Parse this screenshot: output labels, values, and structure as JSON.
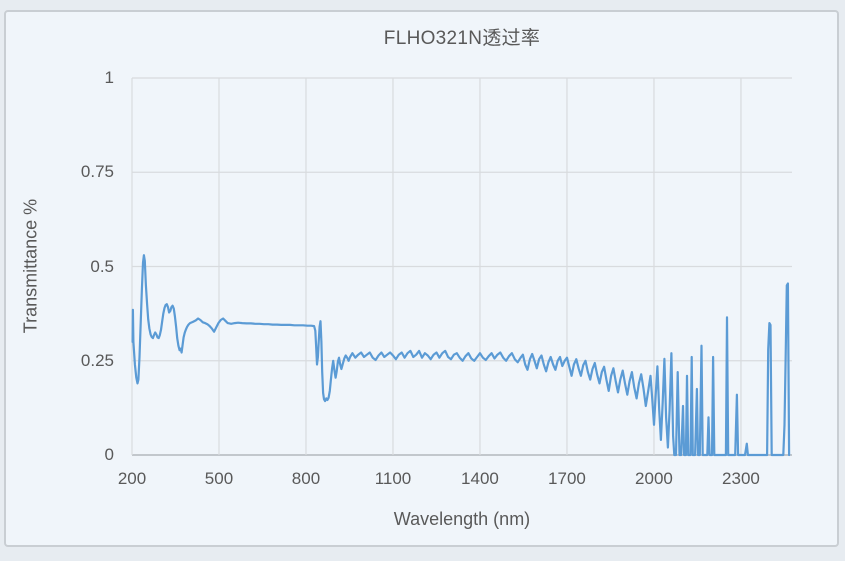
{
  "page": {
    "background": "#e7ecf1"
  },
  "card": {
    "background": "#f0f5fa",
    "border_color": "#c9ced3"
  },
  "chart_data": {
    "type": "line",
    "title": "FLHO321N透过率",
    "xlabel": "Wavelength (nm)",
    "ylabel": "Transmittance %",
    "xlim": [
      200,
      2476
    ],
    "ylim": [
      0,
      1
    ],
    "x_tick_values": [
      200,
      500,
      800,
      1100,
      1400,
      1700,
      2000,
      2300
    ],
    "x_tick_labels": [
      "200",
      "500",
      "800",
      "1100",
      "1400",
      "1700",
      "2000",
      "2300"
    ],
    "y_tick_values": [
      0,
      0.25,
      0.5,
      0.75,
      1
    ],
    "y_tick_labels": [
      "0",
      "0.25",
      "0.5",
      "0.75",
      "1"
    ],
    "grid": true,
    "legend": "none",
    "line_color": "#5b9bd5",
    "grid_color": "#d8dbde",
    "axis_color": "#b3b8bd",
    "text_color": "#595959",
    "series": [
      {
        "name": "FLHO321N",
        "points": [
          [
            202,
            0.3
          ],
          [
            203,
            0.385
          ],
          [
            205,
            0.3
          ],
          [
            210,
            0.24
          ],
          [
            215,
            0.205
          ],
          [
            219,
            0.19
          ],
          [
            222,
            0.2
          ],
          [
            226,
            0.26
          ],
          [
            230,
            0.35
          ],
          [
            234,
            0.44
          ],
          [
            238,
            0.51
          ],
          [
            241,
            0.53
          ],
          [
            244,
            0.515
          ],
          [
            248,
            0.45
          ],
          [
            252,
            0.4
          ],
          [
            256,
            0.36
          ],
          [
            260,
            0.335
          ],
          [
            264,
            0.32
          ],
          [
            268,
            0.313
          ],
          [
            272,
            0.31
          ],
          [
            276,
            0.318
          ],
          [
            280,
            0.325
          ],
          [
            284,
            0.32
          ],
          [
            288,
            0.312
          ],
          [
            292,
            0.31
          ],
          [
            296,
            0.318
          ],
          [
            300,
            0.332
          ],
          [
            304,
            0.355
          ],
          [
            308,
            0.375
          ],
          [
            312,
            0.39
          ],
          [
            316,
            0.398
          ],
          [
            320,
            0.4
          ],
          [
            324,
            0.392
          ],
          [
            328,
            0.378
          ],
          [
            332,
            0.382
          ],
          [
            336,
            0.392
          ],
          [
            340,
            0.396
          ],
          [
            344,
            0.388
          ],
          [
            348,
            0.368
          ],
          [
            352,
            0.34
          ],
          [
            356,
            0.31
          ],
          [
            360,
            0.29
          ],
          [
            364,
            0.278
          ],
          [
            368,
            0.282
          ],
          [
            371,
            0.272
          ],
          [
            374,
            0.29
          ],
          [
            378,
            0.312
          ],
          [
            382,
            0.325
          ],
          [
            386,
            0.333
          ],
          [
            390,
            0.34
          ],
          [
            395,
            0.346
          ],
          [
            400,
            0.35
          ],
          [
            410,
            0.353
          ],
          [
            420,
            0.357
          ],
          [
            428,
            0.362
          ],
          [
            436,
            0.358
          ],
          [
            444,
            0.352
          ],
          [
            452,
            0.35
          ],
          [
            460,
            0.347
          ],
          [
            468,
            0.342
          ],
          [
            476,
            0.335
          ],
          [
            483,
            0.327
          ],
          [
            490,
            0.338
          ],
          [
            498,
            0.35
          ],
          [
            506,
            0.358
          ],
          [
            514,
            0.362
          ],
          [
            522,
            0.356
          ],
          [
            530,
            0.35
          ],
          [
            542,
            0.348
          ],
          [
            554,
            0.35
          ],
          [
            566,
            0.351
          ],
          [
            580,
            0.35
          ],
          [
            595,
            0.349
          ],
          [
            610,
            0.349
          ],
          [
            625,
            0.348
          ],
          [
            640,
            0.348
          ],
          [
            655,
            0.347
          ],
          [
            670,
            0.347
          ],
          [
            685,
            0.346
          ],
          [
            700,
            0.346
          ],
          [
            715,
            0.345
          ],
          [
            730,
            0.345
          ],
          [
            745,
            0.345
          ],
          [
            760,
            0.344
          ],
          [
            775,
            0.344
          ],
          [
            790,
            0.344
          ],
          [
            805,
            0.343
          ],
          [
            818,
            0.343
          ],
          [
            828,
            0.342
          ],
          [
            832,
            0.33
          ],
          [
            835,
            0.29
          ],
          [
            838,
            0.24
          ],
          [
            841,
            0.26
          ],
          [
            844,
            0.3
          ],
          [
            847,
            0.34
          ],
          [
            850,
            0.355
          ],
          [
            853,
            0.3
          ],
          [
            856,
            0.22
          ],
          [
            859,
            0.165
          ],
          [
            862,
            0.148
          ],
          [
            866,
            0.143
          ],
          [
            870,
            0.15
          ],
          [
            874,
            0.146
          ],
          [
            878,
            0.152
          ],
          [
            882,
            0.17
          ],
          [
            886,
            0.2
          ],
          [
            890,
            0.23
          ],
          [
            894,
            0.25
          ],
          [
            898,
            0.225
          ],
          [
            902,
            0.205
          ],
          [
            906,
            0.222
          ],
          [
            910,
            0.248
          ],
          [
            914,
            0.258
          ],
          [
            918,
            0.24
          ],
          [
            922,
            0.228
          ],
          [
            927,
            0.242
          ],
          [
            932,
            0.256
          ],
          [
            937,
            0.264
          ],
          [
            942,
            0.258
          ],
          [
            947,
            0.25
          ],
          [
            952,
            0.26
          ],
          [
            960,
            0.27
          ],
          [
            970,
            0.258
          ],
          [
            980,
            0.266
          ],
          [
            990,
            0.272
          ],
          [
            1000,
            0.26
          ],
          [
            1010,
            0.266
          ],
          [
            1020,
            0.272
          ],
          [
            1030,
            0.258
          ],
          [
            1040,
            0.252
          ],
          [
            1050,
            0.264
          ],
          [
            1060,
            0.272
          ],
          [
            1070,
            0.26
          ],
          [
            1080,
            0.266
          ],
          [
            1090,
            0.272
          ],
          [
            1100,
            0.264
          ],
          [
            1110,
            0.254
          ],
          [
            1120,
            0.266
          ],
          [
            1130,
            0.272
          ],
          [
            1140,
            0.258
          ],
          [
            1150,
            0.27
          ],
          [
            1160,
            0.276
          ],
          [
            1170,
            0.26
          ],
          [
            1180,
            0.266
          ],
          [
            1190,
            0.276
          ],
          [
            1200,
            0.258
          ],
          [
            1210,
            0.27
          ],
          [
            1220,
            0.264
          ],
          [
            1230,
            0.254
          ],
          [
            1240,
            0.266
          ],
          [
            1250,
            0.272
          ],
          [
            1260,
            0.258
          ],
          [
            1270,
            0.27
          ],
          [
            1280,
            0.276
          ],
          [
            1290,
            0.26
          ],
          [
            1300,
            0.254
          ],
          [
            1310,
            0.266
          ],
          [
            1320,
            0.27
          ],
          [
            1330,
            0.258
          ],
          [
            1340,
            0.25
          ],
          [
            1350,
            0.262
          ],
          [
            1360,
            0.27
          ],
          [
            1370,
            0.256
          ],
          [
            1380,
            0.25
          ],
          [
            1390,
            0.26
          ],
          [
            1400,
            0.27
          ],
          [
            1410,
            0.258
          ],
          [
            1420,
            0.252
          ],
          [
            1430,
            0.262
          ],
          [
            1440,
            0.27
          ],
          [
            1450,
            0.256
          ],
          [
            1460,
            0.266
          ],
          [
            1470,
            0.272
          ],
          [
            1480,
            0.258
          ],
          [
            1490,
            0.25
          ],
          [
            1500,
            0.262
          ],
          [
            1510,
            0.27
          ],
          [
            1520,
            0.254
          ],
          [
            1530,
            0.246
          ],
          [
            1540,
            0.258
          ],
          [
            1548,
            0.266
          ],
          [
            1556,
            0.24
          ],
          [
            1564,
            0.226
          ],
          [
            1572,
            0.254
          ],
          [
            1580,
            0.268
          ],
          [
            1588,
            0.25
          ],
          [
            1596,
            0.23
          ],
          [
            1604,
            0.254
          ],
          [
            1612,
            0.264
          ],
          [
            1620,
            0.24
          ],
          [
            1628,
            0.222
          ],
          [
            1636,
            0.246
          ],
          [
            1644,
            0.26
          ],
          [
            1652,
            0.24
          ],
          [
            1660,
            0.226
          ],
          [
            1668,
            0.25
          ],
          [
            1676,
            0.26
          ],
          [
            1684,
            0.236
          ],
          [
            1692,
            0.25
          ],
          [
            1700,
            0.258
          ],
          [
            1708,
            0.234
          ],
          [
            1716,
            0.21
          ],
          [
            1724,
            0.24
          ],
          [
            1732,
            0.254
          ],
          [
            1740,
            0.23
          ],
          [
            1748,
            0.21
          ],
          [
            1756,
            0.238
          ],
          [
            1764,
            0.25
          ],
          [
            1772,
            0.22
          ],
          [
            1780,
            0.2
          ],
          [
            1788,
            0.228
          ],
          [
            1796,
            0.244
          ],
          [
            1804,
            0.214
          ],
          [
            1812,
            0.19
          ],
          [
            1820,
            0.22
          ],
          [
            1828,
            0.234
          ],
          [
            1836,
            0.2
          ],
          [
            1844,
            0.17
          ],
          [
            1852,
            0.21
          ],
          [
            1860,
            0.23
          ],
          [
            1868,
            0.196
          ],
          [
            1876,
            0.166
          ],
          [
            1884,
            0.2
          ],
          [
            1892,
            0.224
          ],
          [
            1900,
            0.19
          ],
          [
            1908,
            0.16
          ],
          [
            1916,
            0.196
          ],
          [
            1924,
            0.22
          ],
          [
            1932,
            0.18
          ],
          [
            1940,
            0.15
          ],
          [
            1948,
            0.19
          ],
          [
            1956,
            0.214
          ],
          [
            1964,
            0.176
          ],
          [
            1972,
            0.13
          ],
          [
            1980,
            0.17
          ],
          [
            1988,
            0.21
          ],
          [
            1994,
            0.15
          ],
          [
            2000,
            0.08
          ],
          [
            2006,
            0.16
          ],
          [
            2012,
            0.235
          ],
          [
            2018,
            0.12
          ],
          [
            2024,
            0.04
          ],
          [
            2030,
            0.14
          ],
          [
            2036,
            0.255
          ],
          [
            2042,
            0.1
          ],
          [
            2048,
            0.02
          ],
          [
            2054,
            0.12
          ],
          [
            2060,
            0.27
          ],
          [
            2066,
            0.05
          ],
          [
            2070,
            0
          ],
          [
            2076,
            0
          ],
          [
            2082,
            0.22
          ],
          [
            2088,
            0
          ],
          [
            2094,
            0
          ],
          [
            2100,
            0.13
          ],
          [
            2104,
            0
          ],
          [
            2110,
            0
          ],
          [
            2114,
            0.21
          ],
          [
            2118,
            0
          ],
          [
            2126,
            0
          ],
          [
            2130,
            0.26
          ],
          [
            2134,
            0
          ],
          [
            2142,
            0
          ],
          [
            2148,
            0.175
          ],
          [
            2152,
            0
          ],
          [
            2158,
            0
          ],
          [
            2164,
            0.29
          ],
          [
            2168,
            0
          ],
          [
            2176,
            0
          ],
          [
            2184,
            0
          ],
          [
            2188,
            0.1
          ],
          [
            2192,
            0
          ],
          [
            2200,
            0
          ],
          [
            2204,
            0.26
          ],
          [
            2208,
            0
          ],
          [
            2216,
            0
          ],
          [
            2224,
            0
          ],
          [
            2232,
            0
          ],
          [
            2240,
            0
          ],
          [
            2248,
            0
          ],
          [
            2252,
            0.365
          ],
          [
            2256,
            0
          ],
          [
            2264,
            0
          ],
          [
            2272,
            0
          ],
          [
            2280,
            0
          ],
          [
            2286,
            0.16
          ],
          [
            2290,
            0
          ],
          [
            2298,
            0
          ],
          [
            2306,
            0
          ],
          [
            2314,
            0
          ],
          [
            2320,
            0.03
          ],
          [
            2324,
            0
          ],
          [
            2332,
            0
          ],
          [
            2340,
            0
          ],
          [
            2350,
            0
          ],
          [
            2360,
            0
          ],
          [
            2370,
            0
          ],
          [
            2380,
            0
          ],
          [
            2390,
            0
          ],
          [
            2394,
            0.28
          ],
          [
            2398,
            0.35
          ],
          [
            2402,
            0.345
          ],
          [
            2406,
            0
          ],
          [
            2414,
            0
          ],
          [
            2422,
            0
          ],
          [
            2430,
            0
          ],
          [
            2438,
            0
          ],
          [
            2446,
            0
          ],
          [
            2450,
            0.08
          ],
          [
            2454,
            0.25
          ],
          [
            2458,
            0.45
          ],
          [
            2462,
            0.455
          ],
          [
            2466,
            0
          ]
        ]
      }
    ]
  }
}
